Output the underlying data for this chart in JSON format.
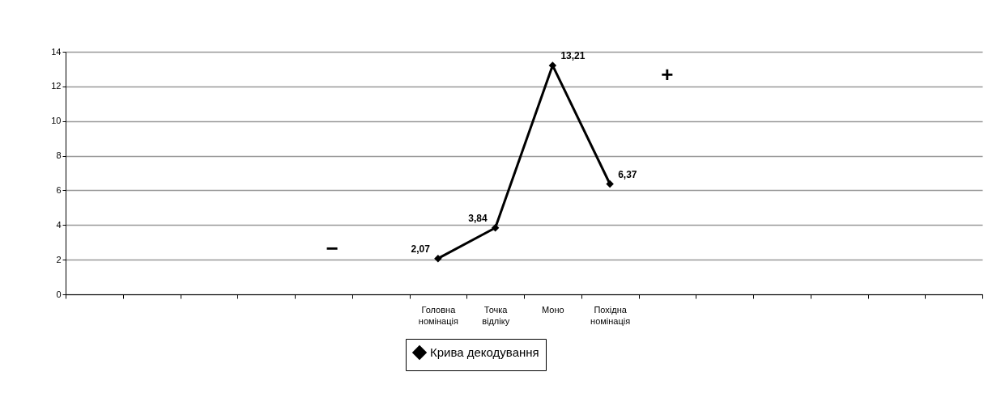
{
  "chart_data": {
    "type": "line",
    "categories": [
      null,
      null,
      null,
      null,
      null,
      null,
      "Головна номінація",
      "Точка відліку",
      "Моно",
      "Похідна номінація",
      null,
      null,
      null,
      null,
      null,
      null
    ],
    "series": [
      {
        "name": "Крива декодування",
        "color": "#000000",
        "values": [
          null,
          null,
          null,
          null,
          null,
          null,
          2.07,
          3.84,
          13.21,
          6.37,
          null,
          null,
          null,
          null,
          null,
          null
        ],
        "value_labels": [
          null,
          null,
          null,
          null,
          null,
          null,
          "2,07",
          "3,84",
          "13,21",
          "6,37",
          null,
          null,
          null,
          null,
          null,
          null
        ]
      }
    ],
    "ylim": [
      0,
      14
    ],
    "yticks": [
      0,
      2,
      4,
      6,
      8,
      10,
      12,
      14
    ],
    "annotations": [
      "−",
      "+"
    ],
    "grid": "y",
    "legend": "bottom",
    "marker": "diamond",
    "line_style": "solid"
  }
}
